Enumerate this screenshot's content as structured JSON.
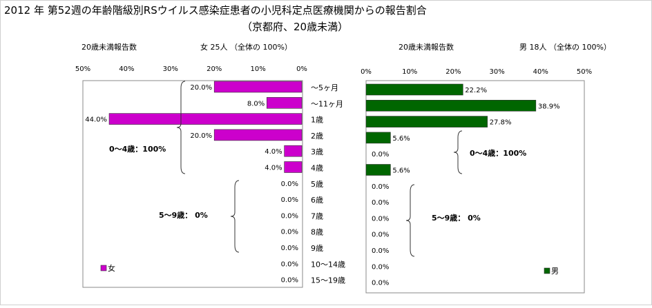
{
  "title_line1": "2012 年 第52週の年齢階級別RSウイルス感染症患者の小児科定点医療機関からの報告割合",
  "title_line2": "（京都府、20歳未満）",
  "left_header_count_label": "20歳未満報告数",
  "left_header_total": "女 25人 （全体の 100%）",
  "right_header_count_label": "20歳未満報告数",
  "right_header_total": "男 18人 （全体の 100%）",
  "chart_data": [
    {
      "type": "bar",
      "orientation": "horizontal",
      "direction": "reversed",
      "series": [
        {
          "name": "女",
          "values": [
            20.0,
            8.0,
            44.0,
            20.0,
            4.0,
            4.0,
            0.0,
            0.0,
            0.0,
            0.0,
            0.0,
            0.0,
            0.0
          ]
        }
      ],
      "data_labels": [
        "20.0%",
        "8.0%",
        "44.0%",
        "20.0%",
        "4.0%",
        "4.0%",
        "0.0%",
        "0.0%",
        "0.0%",
        "0.0%",
        "0.0%",
        "0.0%",
        "0.0%"
      ],
      "xlim": [
        0,
        50
      ],
      "x_ticks": [
        "50%",
        "40%",
        "30%",
        "20%",
        "10%",
        "0%"
      ],
      "bar_color": "#cc00cc",
      "legend": "bottom-left",
      "annotations": [
        "0〜4歳：100%",
        "5〜9歳： 0%"
      ]
    },
    {
      "type": "bar",
      "orientation": "horizontal",
      "series": [
        {
          "name": "男",
          "values": [
            22.2,
            38.9,
            27.8,
            5.6,
            0.0,
            5.6,
            0.0,
            0.0,
            0.0,
            0.0,
            0.0,
            0.0,
            0.0
          ]
        }
      ],
      "data_labels": [
        "22.2%",
        "38.9%",
        "27.8%",
        "5.6%",
        "0.0%",
        "5.6%",
        "0.0%",
        "0.0%",
        "0.0%",
        "0.0%",
        "0.0%",
        "0.0%",
        "0.0%"
      ],
      "xlim": [
        0,
        50
      ],
      "x_ticks": [
        "0%",
        "10%",
        "20%",
        "30%",
        "40%",
        "50%"
      ],
      "bar_color": "#006600",
      "legend": "bottom-right",
      "annotations": [
        "0〜4歳：100%",
        "5〜9歳： 0%"
      ]
    }
  ],
  "categories": [
    "〜5ヶ月",
    "〜11ヶ月",
    "1歳",
    "2歳",
    "3歳",
    "4歳",
    "5歳",
    "6歳",
    "7歳",
    "8歳",
    "9歳",
    "10〜14歳",
    "15〜19歳"
  ]
}
